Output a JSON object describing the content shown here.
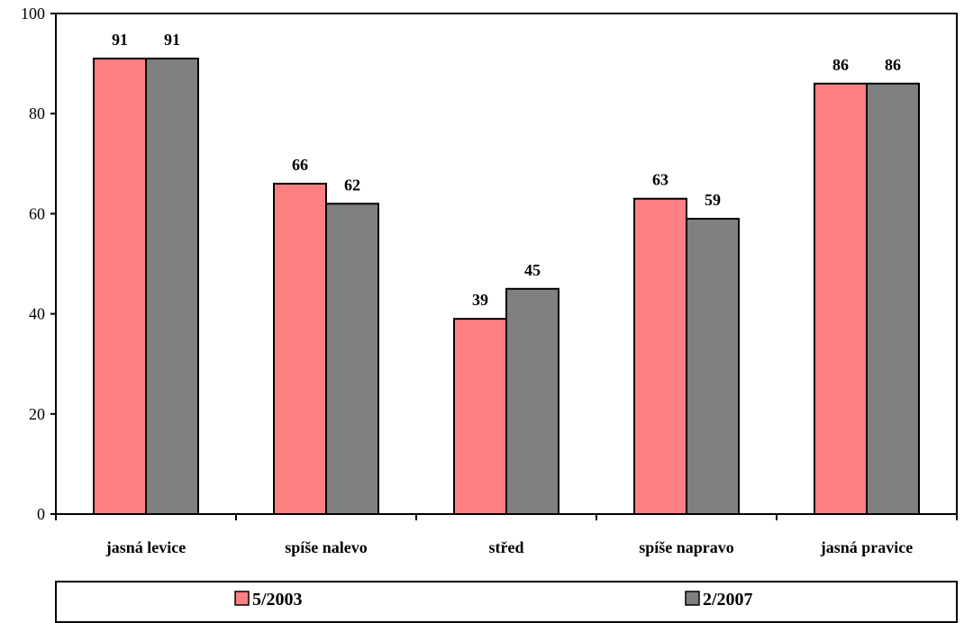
{
  "chart_data": {
    "type": "bar",
    "categories": [
      "jasná levice",
      "spíše nalevo",
      "střed",
      "spíše napravo",
      "jasná pravice"
    ],
    "series": [
      {
        "name": "5/2003",
        "values": [
          91,
          66,
          39,
          63,
          86
        ],
        "color": "#ff8080"
      },
      {
        "name": "2/2007",
        "values": [
          91,
          62,
          45,
          59,
          86
        ],
        "color": "#808080"
      }
    ],
    "ylim": [
      0,
      100
    ],
    "yticks": [
      "0",
      "20",
      "40",
      "60",
      "80",
      "100"
    ],
    "grid": false,
    "legend": "bottom"
  }
}
